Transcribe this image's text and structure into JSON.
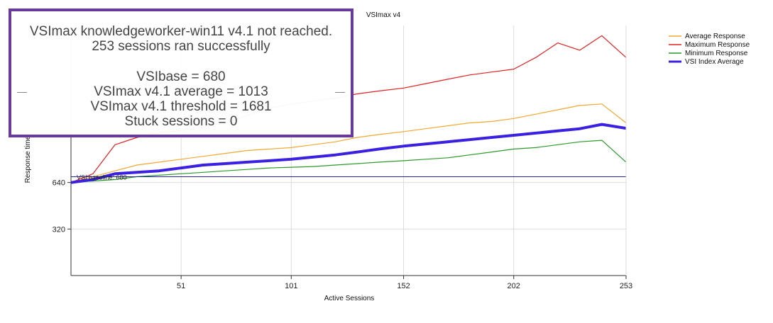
{
  "chart_data": {
    "type": "line",
    "title": "VSImax v4",
    "xlabel": "Active Sessions",
    "ylabel": "Response time",
    "x_ticks": [
      51,
      101,
      152,
      202,
      253
    ],
    "y_ticks": [
      320,
      640
    ],
    "xlim": [
      1,
      253
    ],
    "ylim": [
      0,
      1720
    ],
    "grid": true,
    "legend_position": "top-right",
    "baseline": {
      "label": "VSI baseline: 680",
      "value": 680
    },
    "series": [
      {
        "name": "Average Response",
        "color": "#f0a830"
      },
      {
        "name": "Maximum Response",
        "color": "#e02020"
      },
      {
        "name": "Minimum Response",
        "color": "#2a9a2a"
      },
      {
        "name": "VSI Index Average",
        "color": "#3a20e0"
      }
    ],
    "x": [
      1,
      11,
      21,
      31,
      41,
      51,
      61,
      71,
      81,
      91,
      101,
      111,
      121,
      131,
      141,
      152,
      162,
      172,
      182,
      192,
      202,
      212,
      222,
      232,
      242,
      253
    ],
    "values": {
      "Average Response": [
        640,
        680,
        720,
        760,
        780,
        800,
        820,
        840,
        860,
        870,
        880,
        900,
        920,
        950,
        970,
        990,
        1010,
        1030,
        1050,
        1060,
        1080,
        1110,
        1140,
        1170,
        1180,
        1050
      ],
      "Maximum Response": [
        640,
        700,
        900,
        950,
        980,
        1000,
        1020,
        1050,
        1100,
        1150,
        1180,
        1200,
        1220,
        1250,
        1270,
        1290,
        1320,
        1350,
        1380,
        1400,
        1420,
        1500,
        1600,
        1550,
        1650,
        1500
      ],
      "Minimum Response": [
        640,
        650,
        660,
        680,
        690,
        700,
        710,
        720,
        730,
        740,
        745,
        750,
        760,
        770,
        780,
        790,
        800,
        810,
        830,
        850,
        870,
        880,
        900,
        920,
        930,
        780
      ],
      "VSI Index Average": [
        640,
        660,
        700,
        710,
        720,
        740,
        760,
        770,
        780,
        790,
        800,
        815,
        830,
        850,
        870,
        890,
        905,
        920,
        935,
        950,
        965,
        980,
        995,
        1010,
        1040,
        1013
      ]
    }
  },
  "summary": {
    "line1": "VSImax knowledgeworker-win11 v4.1 not reached.",
    "line2": "253 sessions ran successfully",
    "line3": "VSIbase = 680",
    "line4": "VSImax v4.1 average = 1013",
    "line5": "VSImax v4.1 threshold = 1681",
    "line6": "Stuck sessions = 0"
  }
}
